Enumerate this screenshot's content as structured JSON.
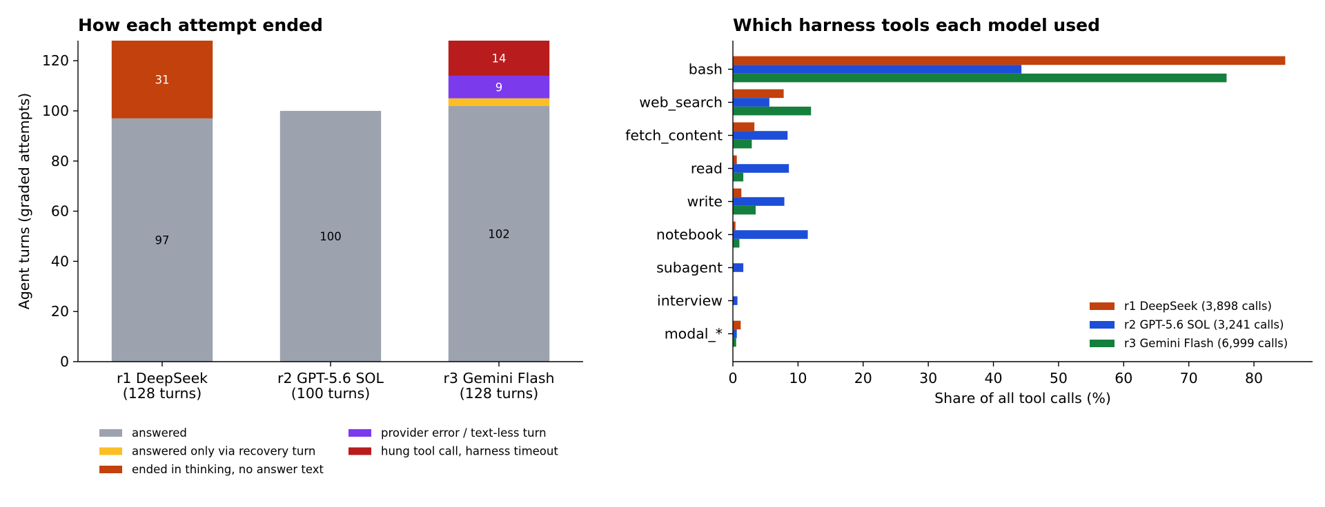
{
  "chart_data": [
    {
      "type": "bar",
      "stacked": true,
      "title": "How each attempt ended",
      "ylabel": "Agent turns (graded attempts)",
      "xlabel": "",
      "ylim": [
        0,
        128
      ],
      "yticks": [
        0,
        20,
        40,
        60,
        80,
        100,
        120
      ],
      "categories": [
        [
          "r1 DeepSeek",
          "(128 turns)"
        ],
        [
          "r2 GPT-5.6 SOL",
          "(100 turns)"
        ],
        [
          "r3 Gemini Flash",
          "(128 turns)"
        ]
      ],
      "series": [
        {
          "name": "answered",
          "color": "#9ca3af",
          "label_color": "#000000",
          "values": [
            97,
            100,
            102
          ]
        },
        {
          "name": "answered only via recovery turn",
          "color": "#fbbf24",
          "label_color": "#000000",
          "values": [
            0,
            0,
            3
          ]
        },
        {
          "name": "ended in thinking, no answer text",
          "color": "#c2410c",
          "label_color": "#ffffff",
          "values": [
            31,
            0,
            0
          ]
        },
        {
          "name": "provider error / text-less turn",
          "color": "#7c3aed",
          "label_color": "#ffffff",
          "values": [
            0,
            0,
            9
          ]
        },
        {
          "name": "hung tool call, harness timeout",
          "color": "#b91c1c",
          "label_color": "#ffffff",
          "values": [
            0,
            0,
            14
          ]
        }
      ],
      "data_labels": [
        {
          "series": 0,
          "category": 0,
          "text": "97"
        },
        {
          "series": 0,
          "category": 1,
          "text": "100"
        },
        {
          "series": 0,
          "category": 2,
          "text": "102"
        },
        {
          "series": 2,
          "category": 0,
          "text": "31"
        },
        {
          "series": 3,
          "category": 2,
          "text": "9"
        },
        {
          "series": 4,
          "category": 2,
          "text": "14"
        }
      ],
      "legend_placement": "below",
      "grid": false
    },
    {
      "type": "bar",
      "orientation": "horizontal",
      "title": "Which harness tools each model used",
      "xlabel": "Share of all tool calls (%)",
      "ylabel": "",
      "xlim": [
        0,
        89
      ],
      "xticks": [
        0,
        10,
        20,
        30,
        40,
        50,
        60,
        70,
        80
      ],
      "categories": [
        "bash",
        "web_search",
        "fetch_content",
        "read",
        "write",
        "notebook",
        "subagent",
        "interview",
        "modal_*"
      ],
      "series": [
        {
          "name": "r1 DeepSeek (3,898 calls)",
          "color": "#c2410c",
          "values": [
            84.8,
            7.8,
            3.3,
            0.6,
            1.3,
            0.4,
            0.0,
            0.0,
            1.2
          ]
        },
        {
          "name": "r2 GPT-5.6 SOL (3,241 calls)",
          "color": "#1d4ed8",
          "values": [
            44.3,
            5.6,
            8.4,
            8.6,
            7.9,
            11.5,
            1.6,
            0.7,
            0.6
          ]
        },
        {
          "name": "r3 Gemini Flash (6,999 calls)",
          "color": "#15803d",
          "values": [
            75.8,
            12.0,
            2.9,
            1.6,
            3.5,
            1.0,
            0.0,
            0.0,
            0.5
          ]
        }
      ],
      "legend_placement": "lower right",
      "grid": false
    }
  ]
}
